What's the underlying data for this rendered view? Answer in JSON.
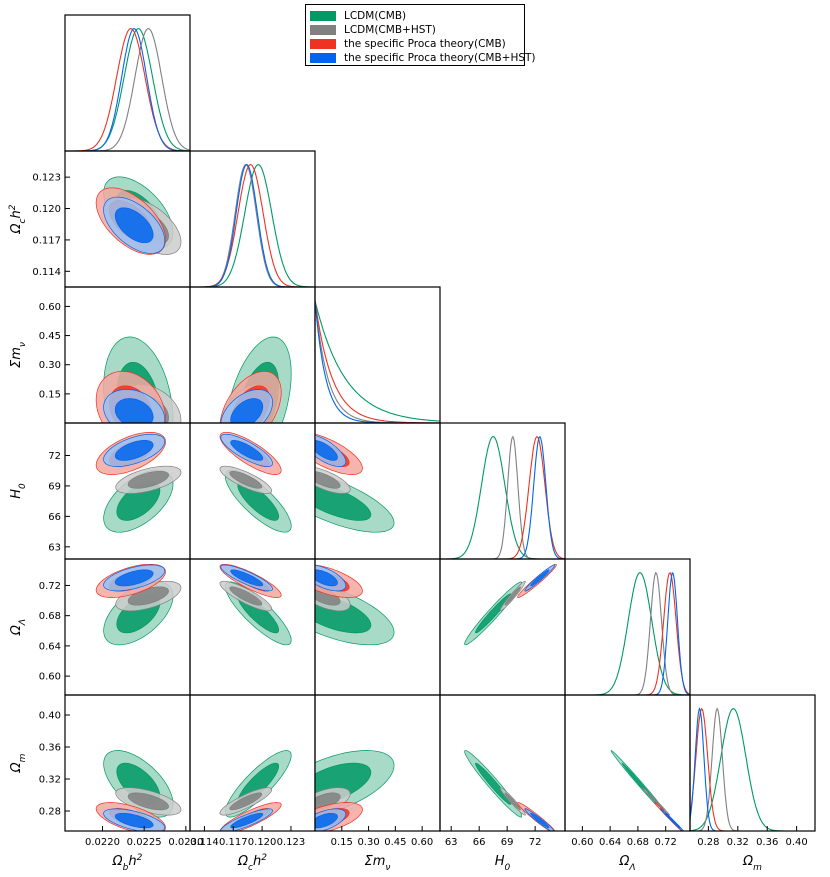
{
  "chart_data": {
    "type": "triangle",
    "params": [
      "Omega_b h^2",
      "Omega_c h^2",
      "Sigma m_nu",
      "H_0",
      "Omega_Lambda",
      "Omega_m"
    ],
    "param_labels": [
      {
        "base": "Ω",
        "sub": "b",
        "tail": "h",
        "sup": "2"
      },
      {
        "base": "Ω",
        "sub": "c",
        "tail": "h",
        "sup": "2"
      },
      {
        "base": "Σm",
        "sub": "ν",
        "tail": "",
        "sup": ""
      },
      {
        "base": "H",
        "sub": "0",
        "tail": "",
        "sup": ""
      },
      {
        "base": "Ω",
        "sub": "Λ",
        "tail": "",
        "sup": ""
      },
      {
        "base": "Ω",
        "sub": "m",
        "tail": "",
        "sup": ""
      }
    ],
    "ranges": [
      [
        0.02155,
        0.02305
      ],
      [
        0.1125,
        0.1255
      ],
      [
        0.0,
        0.7
      ],
      [
        61.8,
        75.2
      ],
      [
        0.575,
        0.755
      ],
      [
        0.255,
        0.425
      ]
    ],
    "ticks": [
      [
        "0.0220",
        "0.0225",
        "0.0230"
      ],
      [
        "0.114",
        "0.117",
        "0.120",
        "0.123"
      ],
      [
        "0.15",
        "0.30",
        "0.45",
        "0.60"
      ],
      [
        "63",
        "66",
        "69",
        "72"
      ],
      [
        "0.60",
        "0.64",
        "0.68",
        "0.72"
      ],
      [
        "0.28",
        "0.32",
        "0.36",
        "0.40"
      ]
    ],
    "series": [
      {
        "name": "LCDM(CMB)",
        "color": "#009966",
        "fill_inner": "#009966",
        "fill_outer": "#99d5bd",
        "mean": [
          0.02243,
          0.1196,
          0.1,
          67.5,
          0.683,
          0.314
        ],
        "sigma": [
          0.00017,
          0.0014,
          0.14,
          1.25,
          0.017,
          0.017
        ]
      },
      {
        "name": "LCDM(CMB+HST)",
        "color": "#808080",
        "fill_inner": "#808080",
        "fill_outer": "#cdcdcd",
        "mean": [
          0.02255,
          0.1183,
          0.05,
          69.6,
          0.706,
          0.292
        ],
        "sigma": [
          0.00016,
          0.0011,
          0.06,
          0.55,
          0.008,
          0.007
        ]
      },
      {
        "name": "the specific Proca theory(CMB)",
        "color": "#ee3322",
        "fill_inner": "#ee3322",
        "fill_outer": "#f3a7a0",
        "mean": [
          0.02234,
          0.1188,
          0.07,
          72.2,
          0.726,
          0.271
        ],
        "sigma": [
          0.00017,
          0.0013,
          0.08,
          0.85,
          0.009,
          0.008
        ]
      },
      {
        "name": "the specific Proca theory(CMB+HST)",
        "color": "#0066ee",
        "fill_inner": "#0066ee",
        "fill_outer": "#99c2f3",
        "mean": [
          0.02238,
          0.1184,
          0.05,
          72.5,
          0.73,
          0.268
        ],
        "sigma": [
          0.00015,
          0.0011,
          0.05,
          0.65,
          0.007,
          0.006
        ]
      }
    ],
    "legend_position": "top-center"
  }
}
